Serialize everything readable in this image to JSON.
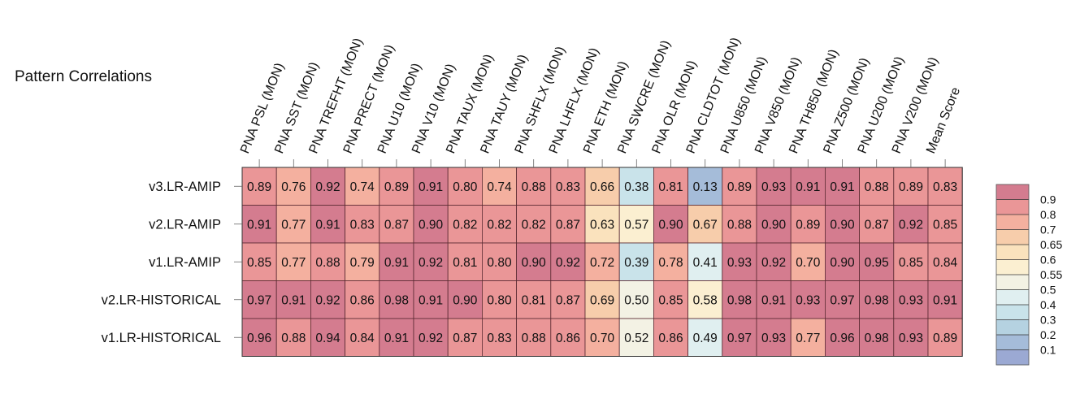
{
  "chart_data": {
    "type": "heatmap",
    "title": "Pattern Correlations",
    "columns": [
      "PNA PSL (MON)",
      "PNA SST (MON)",
      "PNA TREFHT (MON)",
      "PNA PRECT (MON)",
      "PNA U10 (MON)",
      "PNA V10 (MON)",
      "PNA TAUX (MON)",
      "PNA TAUY (MON)",
      "PNA SHFLX (MON)",
      "PNA LHFLX (MON)",
      "PNA ETH (MON)",
      "PNA SWCRE (MON)",
      "PNA OLR (MON)",
      "PNA CLDTOT (MON)",
      "PNA U850 (MON)",
      "PNA V850 (MON)",
      "PNA TH850 (MON)",
      "PNA Z500 (MON)",
      "PNA U200 (MON)",
      "PNA V200 (MON)",
      "Mean Score"
    ],
    "rows": [
      "v3.LR-AMIP",
      "v2.LR-AMIP",
      "v1.LR-AMIP",
      "v2.LR-HISTORICAL",
      "v1.LR-HISTORICAL"
    ],
    "values": [
      [
        0.89,
        0.76,
        0.92,
        0.74,
        0.89,
        0.91,
        0.8,
        0.74,
        0.88,
        0.83,
        0.66,
        0.38,
        0.81,
        0.13,
        0.89,
        0.93,
        0.91,
        0.91,
        0.88,
        0.89,
        0.83
      ],
      [
        0.91,
        0.77,
        0.91,
        0.83,
        0.87,
        0.9,
        0.82,
        0.82,
        0.82,
        0.87,
        0.63,
        0.57,
        0.9,
        0.67,
        0.88,
        0.9,
        0.89,
        0.9,
        0.87,
        0.92,
        0.85
      ],
      [
        0.85,
        0.77,
        0.88,
        0.79,
        0.91,
        0.92,
        0.81,
        0.8,
        0.9,
        0.92,
        0.72,
        0.39,
        0.78,
        0.41,
        0.93,
        0.92,
        0.7,
        0.9,
        0.95,
        0.85,
        0.84
      ],
      [
        0.97,
        0.91,
        0.92,
        0.86,
        0.98,
        0.91,
        0.9,
        0.8,
        0.81,
        0.87,
        0.69,
        0.5,
        0.85,
        0.58,
        0.98,
        0.91,
        0.93,
        0.97,
        0.98,
        0.93,
        0.91
      ],
      [
        0.96,
        0.88,
        0.94,
        0.84,
        0.91,
        0.92,
        0.87,
        0.83,
        0.88,
        0.86,
        0.7,
        0.52,
        0.86,
        0.49,
        0.97,
        0.93,
        0.77,
        0.96,
        0.98,
        0.93,
        0.89
      ]
    ],
    "colorbar": {
      "tick_labels": [
        "0.9",
        "0.8",
        "0.7",
        "0.65",
        "0.6",
        "0.55",
        "0.5",
        "0.4",
        "0.3",
        "0.2",
        "0.1"
      ],
      "bins": [
        {
          "min": 0.9,
          "max": 1.0,
          "color": "#d47c8f"
        },
        {
          "min": 0.8,
          "max": 0.9,
          "color": "#ea9697"
        },
        {
          "min": 0.7,
          "max": 0.8,
          "color": "#f4b09f"
        },
        {
          "min": 0.65,
          "max": 0.7,
          "color": "#f7cdab"
        },
        {
          "min": 0.6,
          "max": 0.65,
          "color": "#fae2bd"
        },
        {
          "min": 0.55,
          "max": 0.6,
          "color": "#fbefd1"
        },
        {
          "min": 0.5,
          "max": 0.55,
          "color": "#f3f2e4"
        },
        {
          "min": 0.4,
          "max": 0.5,
          "color": "#e0eff0"
        },
        {
          "min": 0.3,
          "max": 0.4,
          "color": "#c9e3ea"
        },
        {
          "min": 0.2,
          "max": 0.3,
          "color": "#b5d2e1"
        },
        {
          "min": 0.1,
          "max": 0.2,
          "color": "#a5bcd9"
        },
        {
          "min": 0.0,
          "max": 0.1,
          "color": "#9ba9d3"
        }
      ]
    }
  }
}
